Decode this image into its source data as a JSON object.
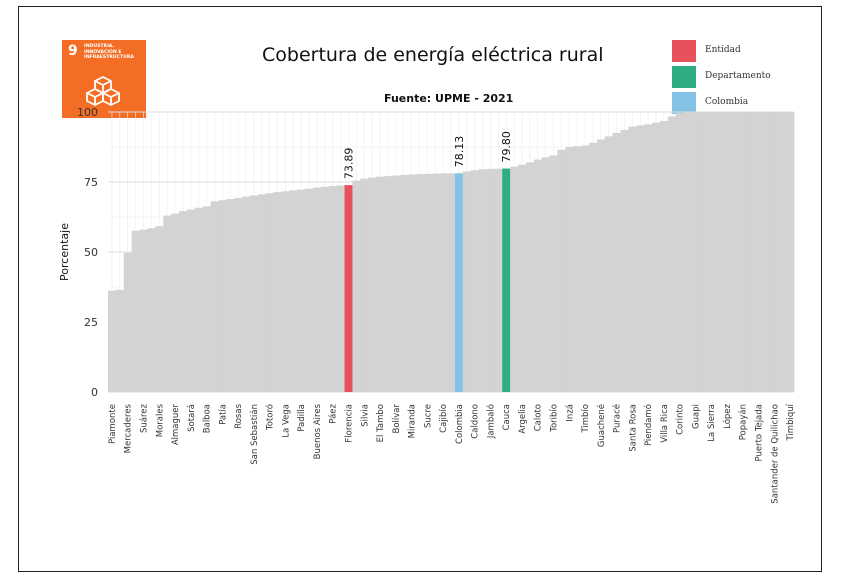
{
  "logo": {
    "number": "9",
    "text": "INDUSTRIA, INNOVACIÓN E INFRAESTRUCTURA",
    "icon": "cubes-icon",
    "color": "#f36d25"
  },
  "legend": {
    "items": [
      {
        "label": "Entidad",
        "color": "#e8505b"
      },
      {
        "label": "Departamento",
        "color": "#2eac82"
      },
      {
        "label": "Colombia",
        "color": "#84c3e6"
      }
    ]
  },
  "chart_data": {
    "type": "bar",
    "title": "Cobertura de energía eléctrica rural",
    "subtitle": "Fuente: UPME - 2021",
    "ylabel": "Porcentaje",
    "xlabel": "",
    "ylim": [
      0,
      100
    ],
    "yticks": [
      0,
      25,
      50,
      75,
      100
    ],
    "grid": true,
    "legend_position": "top-right",
    "colors": {
      "default": "#d3d3d3",
      "Entidad": "#e8505b",
      "Departamento": "#2eac82",
      "Colombia": "#84c3e6"
    },
    "categories": [
      "Piamonte",
      "Mercaderes",
      "Suárez",
      "Morales",
      "Almaguer",
      "Sotará",
      "Balboa",
      "Patía",
      "Rosas",
      "San Sebastián",
      "Totoró",
      "La Vega",
      "Padilla",
      "Buenos Aires",
      "Páez",
      "Florencia",
      "Silvia",
      "El Tambo",
      "Bolívar",
      "Miranda",
      "Sucre",
      "Cajibío",
      "Colombia",
      "Caldono",
      "Jambaló",
      "Cauca",
      "Argelia",
      "Caloto",
      "Toribío",
      "Inzá",
      "Timbío",
      "Guachené",
      "Puracé",
      "Santa Rosa",
      "Piendamó",
      "Villa Rica",
      "Corinto",
      "Guapi",
      "La Sierra",
      "López",
      "Popayán",
      "Puerto Tejada",
      "Santander de Quilichao",
      "Timbiquí"
    ],
    "labeled": [
      true,
      true,
      true,
      true,
      true,
      true,
      true,
      true,
      true,
      true,
      true,
      true,
      true,
      true,
      true,
      true,
      true,
      true,
      true,
      true,
      true,
      true,
      true,
      true,
      true,
      true,
      true,
      true,
      true,
      true,
      true,
      true,
      true,
      true,
      true,
      true,
      true,
      true,
      true,
      true,
      true,
      true,
      true,
      true
    ],
    "all_bars": [
      {
        "name": "Piamonte",
        "value": 36.2,
        "group": "Municipio",
        "label": "Piamonte"
      },
      {
        "name": "",
        "value": 36.5,
        "group": "Municipio",
        "label": ""
      },
      {
        "name": "Mercaderes",
        "value": 49.7,
        "group": "Municipio",
        "label": "Mercaderes"
      },
      {
        "name": "",
        "value": 57.6,
        "group": "Municipio",
        "label": ""
      },
      {
        "name": "Suárez",
        "value": 58.0,
        "group": "Municipio",
        "label": "Suárez"
      },
      {
        "name": "",
        "value": 58.5,
        "group": "Municipio",
        "label": ""
      },
      {
        "name": "Morales",
        "value": 59.2,
        "group": "Municipio",
        "label": "Morales"
      },
      {
        "name": "",
        "value": 63.0,
        "group": "Municipio",
        "label": ""
      },
      {
        "name": "Almaguer",
        "value": 63.7,
        "group": "Municipio",
        "label": "Almaguer"
      },
      {
        "name": "",
        "value": 64.6,
        "group": "Municipio",
        "label": ""
      },
      {
        "name": "Sotará",
        "value": 65.2,
        "group": "Municipio",
        "label": "Sotará"
      },
      {
        "name": "",
        "value": 65.8,
        "group": "Municipio",
        "label": ""
      },
      {
        "name": "Balboa",
        "value": 66.3,
        "group": "Municipio",
        "label": "Balboa"
      },
      {
        "name": "",
        "value": 68.1,
        "group": "Municipio",
        "label": ""
      },
      {
        "name": "Patía",
        "value": 68.5,
        "group": "Municipio",
        "label": "Patía"
      },
      {
        "name": "",
        "value": 68.9,
        "group": "Municipio",
        "label": ""
      },
      {
        "name": "Rosas",
        "value": 69.3,
        "group": "Municipio",
        "label": "Rosas"
      },
      {
        "name": "",
        "value": 69.8,
        "group": "Municipio",
        "label": ""
      },
      {
        "name": "San Sebastián",
        "value": 70.2,
        "group": "Municipio",
        "label": "San Sebastián"
      },
      {
        "name": "",
        "value": 70.6,
        "group": "Municipio",
        "label": ""
      },
      {
        "name": "Totoró",
        "value": 71.0,
        "group": "Municipio",
        "label": "Totoró"
      },
      {
        "name": "",
        "value": 71.4,
        "group": "Municipio",
        "label": ""
      },
      {
        "name": "La Vega",
        "value": 71.7,
        "group": "Municipio",
        "label": "La Vega"
      },
      {
        "name": "",
        "value": 72.0,
        "group": "Municipio",
        "label": ""
      },
      {
        "name": "Padilla",
        "value": 72.3,
        "group": "Municipio",
        "label": "Padilla"
      },
      {
        "name": "",
        "value": 72.6,
        "group": "Municipio",
        "label": ""
      },
      {
        "name": "Buenos Aires",
        "value": 73.0,
        "group": "Municipio",
        "label": "Buenos Aires"
      },
      {
        "name": "",
        "value": 73.3,
        "group": "Municipio",
        "label": ""
      },
      {
        "name": "Páez",
        "value": 73.6,
        "group": "Municipio",
        "label": "Páez"
      },
      {
        "name": "",
        "value": 73.8,
        "group": "Municipio",
        "label": ""
      },
      {
        "name": "Florencia",
        "value": 73.89,
        "group": "Entidad",
        "label": "Florencia",
        "value_label": "73.89"
      },
      {
        "name": "",
        "value": 75.5,
        "group": "Municipio",
        "label": ""
      },
      {
        "name": "Silvia",
        "value": 76.2,
        "group": "Municipio",
        "label": "Silvia"
      },
      {
        "name": "",
        "value": 76.6,
        "group": "Municipio",
        "label": ""
      },
      {
        "name": "El Tambo",
        "value": 76.9,
        "group": "Municipio",
        "label": "El Tambo"
      },
      {
        "name": "",
        "value": 77.1,
        "group": "Municipio",
        "label": ""
      },
      {
        "name": "Bolívar",
        "value": 77.3,
        "group": "Municipio",
        "label": "Bolívar"
      },
      {
        "name": "",
        "value": 77.5,
        "group": "Municipio",
        "label": ""
      },
      {
        "name": "Miranda",
        "value": 77.7,
        "group": "Municipio",
        "label": "Miranda"
      },
      {
        "name": "",
        "value": 77.8,
        "group": "Municipio",
        "label": ""
      },
      {
        "name": "Sucre",
        "value": 77.9,
        "group": "Municipio",
        "label": "Sucre"
      },
      {
        "name": "",
        "value": 78.0,
        "group": "Municipio",
        "label": ""
      },
      {
        "name": "Cajibío",
        "value": 78.1,
        "group": "Municipio",
        "label": "Cajibío"
      },
      {
        "name": "",
        "value": 78.12,
        "group": "Municipio",
        "label": ""
      },
      {
        "name": "Colombia",
        "value": 78.13,
        "group": "Colombia",
        "label": "Colombia",
        "value_label": "78.13"
      },
      {
        "name": "",
        "value": 78.8,
        "group": "Municipio",
        "label": ""
      },
      {
        "name": "Caldono",
        "value": 79.2,
        "group": "Municipio",
        "label": "Caldono"
      },
      {
        "name": "",
        "value": 79.5,
        "group": "Municipio",
        "label": ""
      },
      {
        "name": "Jambaló",
        "value": 79.7,
        "group": "Municipio",
        "label": "Jambaló"
      },
      {
        "name": "",
        "value": 79.75,
        "group": "Municipio",
        "label": ""
      },
      {
        "name": "Cauca",
        "value": 79.8,
        "group": "Departamento",
        "label": "Cauca",
        "value_label": "79.80"
      },
      {
        "name": "",
        "value": 80.5,
        "group": "Municipio",
        "label": ""
      },
      {
        "name": "Argelia",
        "value": 81.2,
        "group": "Municipio",
        "label": "Argelia"
      },
      {
        "name": "",
        "value": 82.0,
        "group": "Municipio",
        "label": ""
      },
      {
        "name": "Caloto",
        "value": 83.0,
        "group": "Municipio",
        "label": "Caloto"
      },
      {
        "name": "",
        "value": 83.8,
        "group": "Municipio",
        "label": ""
      },
      {
        "name": "Toribío",
        "value": 84.5,
        "group": "Municipio",
        "label": "Toribío"
      },
      {
        "name": "",
        "value": 86.5,
        "group": "Municipio",
        "label": ""
      },
      {
        "name": "Inzá",
        "value": 87.5,
        "group": "Municipio",
        "label": "Inzá"
      },
      {
        "name": "",
        "value": 87.8,
        "group": "Municipio",
        "label": ""
      },
      {
        "name": "Timbío",
        "value": 88.0,
        "group": "Municipio",
        "label": "Timbío"
      },
      {
        "name": "",
        "value": 89.0,
        "group": "Municipio",
        "label": ""
      },
      {
        "name": "Guachené",
        "value": 90.2,
        "group": "Municipio",
        "label": "Guachené"
      },
      {
        "name": "",
        "value": 91.3,
        "group": "Municipio",
        "label": ""
      },
      {
        "name": "Puracé",
        "value": 92.5,
        "group": "Municipio",
        "label": "Puracé"
      },
      {
        "name": "",
        "value": 93.6,
        "group": "Municipio",
        "label": ""
      },
      {
        "name": "Santa Rosa",
        "value": 94.8,
        "group": "Municipio",
        "label": "Santa Rosa"
      },
      {
        "name": "",
        "value": 95.2,
        "group": "Municipio",
        "label": ""
      },
      {
        "name": "Piendamó",
        "value": 95.6,
        "group": "Municipio",
        "label": "Piendamó"
      },
      {
        "name": "",
        "value": 96.2,
        "group": "Municipio",
        "label": ""
      },
      {
        "name": "Villa Rica",
        "value": 96.8,
        "group": "Municipio",
        "label": "Villa Rica"
      },
      {
        "name": "",
        "value": 98.4,
        "group": "Municipio",
        "label": ""
      },
      {
        "name": "Corinto",
        "value": 99.6,
        "group": "Municipio",
        "label": "Corinto"
      },
      {
        "name": "",
        "value": 99.8,
        "group": "Municipio",
        "label": ""
      },
      {
        "name": "Guapi",
        "value": 99.9,
        "group": "Municipio",
        "label": "Guapi"
      },
      {
        "name": "",
        "value": 99.9,
        "group": "Municipio",
        "label": ""
      },
      {
        "name": "La Sierra",
        "value": 100,
        "group": "Municipio",
        "label": "La Sierra"
      },
      {
        "name": "",
        "value": 100,
        "group": "Municipio",
        "label": ""
      },
      {
        "name": "López",
        "value": 100,
        "group": "Municipio",
        "label": "López"
      },
      {
        "name": "",
        "value": 100,
        "group": "Municipio",
        "label": ""
      },
      {
        "name": "Popayán",
        "value": 100,
        "group": "Municipio",
        "label": "Popayán"
      },
      {
        "name": "",
        "value": 100,
        "group": "Municipio",
        "label": ""
      },
      {
        "name": "Puerto Tejada",
        "value": 100,
        "group": "Municipio",
        "label": "Puerto Tejada"
      },
      {
        "name": "",
        "value": 100,
        "group": "Municipio",
        "label": ""
      },
      {
        "name": "Santander de Quilichao",
        "value": 100,
        "group": "Municipio",
        "label": "Santander de Quilichao"
      },
      {
        "name": "",
        "value": 100,
        "group": "Municipio",
        "label": ""
      },
      {
        "name": "Timbiquí",
        "value": 100,
        "group": "Municipio",
        "label": "Timbiquí"
      }
    ]
  }
}
